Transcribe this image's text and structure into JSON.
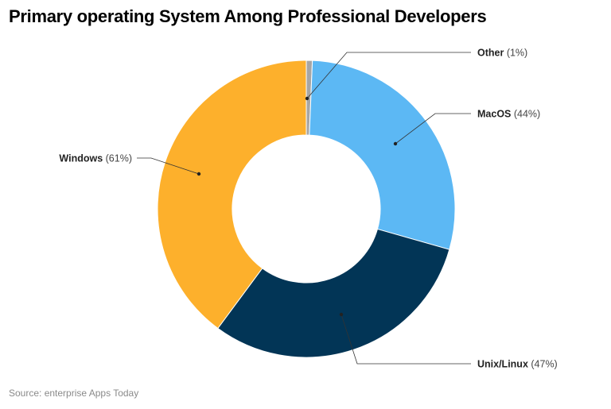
{
  "chart_data": {
    "type": "pie",
    "donut": true,
    "title": "Primary operating System Among Professional Developers",
    "source": "Source: enterprise Apps Today",
    "slices": [
      {
        "label": "Other",
        "value": 1,
        "display": "(1%)",
        "color": "#a6a6a6"
      },
      {
        "label": "MacOS",
        "value": 44,
        "display": "(44%)",
        "color": "#5cb8f4"
      },
      {
        "label": "Unix/Linux",
        "value": 47,
        "display": "(47%)",
        "color": "#023556"
      },
      {
        "label": "Windows",
        "value": 61,
        "display": "(61%)",
        "color": "#fdb02c"
      }
    ]
  }
}
